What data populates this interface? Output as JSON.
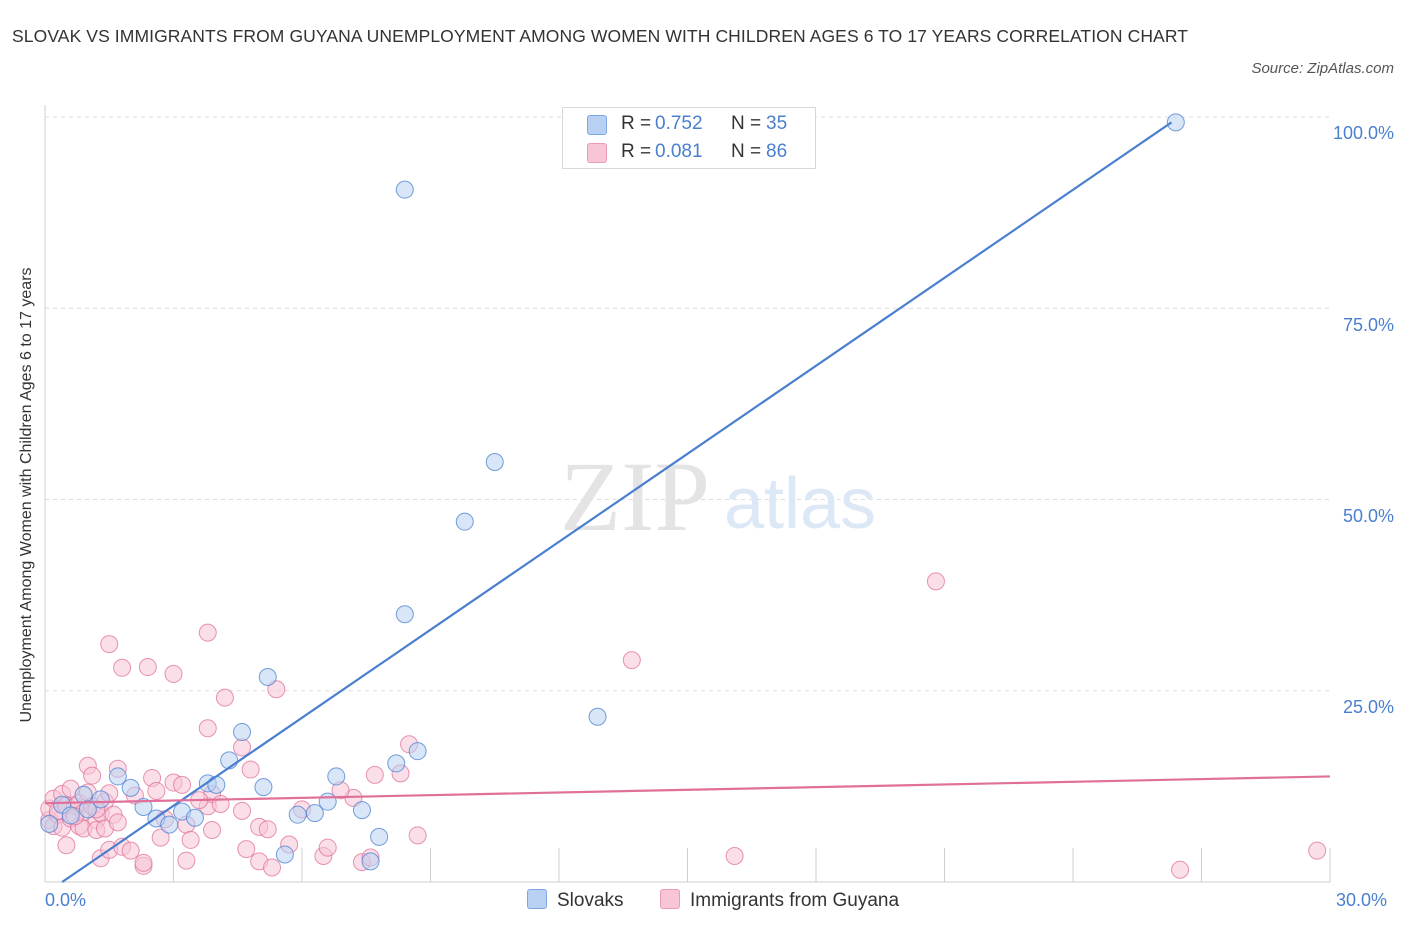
{
  "title": "SLOVAK VS IMMIGRANTS FROM GUYANA UNEMPLOYMENT AMONG WOMEN WITH CHILDREN AGES 6 TO 17 YEARS CORRELATION CHART",
  "source": "Source: ZipAtlas.com",
  "watermark": {
    "zip": "ZIP",
    "atlas": "atlas"
  },
  "legend": {
    "rows": [
      {
        "r_label": "R =",
        "r_value": "0.752",
        "n_label": "N =",
        "n_value": "35"
      },
      {
        "r_label": "R =",
        "r_value": "0.081",
        "n_label": "N =",
        "n_value": "86"
      }
    ]
  },
  "chart_data": {
    "type": "scatter",
    "xlabel": "",
    "ylabel": "Unemployment Among Women with Children Ages 6 to 17 years",
    "xlim": [
      0,
      30
    ],
    "ylim": [
      0,
      100
    ],
    "x_tick_labels": [
      "0.0%",
      "30.0%"
    ],
    "y_ticks": [
      25,
      50,
      75,
      100
    ],
    "y_tick_labels": [
      "25.0%",
      "50.0%",
      "75.0%",
      "100.0%"
    ],
    "grid": true,
    "legend_position": "bottom",
    "series": [
      {
        "name": "Slovaks",
        "color": "#4a7fd0",
        "fill": "#b8d1f3",
        "r": 0.752,
        "n": 35,
        "trend": [
          [
            0.4,
            0
          ],
          [
            26.3,
            99.3
          ]
        ],
        "points": [
          [
            0.1,
            7.6
          ],
          [
            0.4,
            10.1
          ],
          [
            0.6,
            8.7
          ],
          [
            0.9,
            11.4
          ],
          [
            1.0,
            9.5
          ],
          [
            1.3,
            10.8
          ],
          [
            1.7,
            13.8
          ],
          [
            2.0,
            12.3
          ],
          [
            2.3,
            9.8
          ],
          [
            2.6,
            8.3
          ],
          [
            2.9,
            7.5
          ],
          [
            3.2,
            9.2
          ],
          [
            3.5,
            8.4
          ],
          [
            3.8,
            12.9
          ],
          [
            4.0,
            12.7
          ],
          [
            4.3,
            15.9
          ],
          [
            4.6,
            19.6
          ],
          [
            5.1,
            12.4
          ],
          [
            5.2,
            26.8
          ],
          [
            5.6,
            3.6
          ],
          [
            5.9,
            8.8
          ],
          [
            6.3,
            9.0
          ],
          [
            6.6,
            10.5
          ],
          [
            6.8,
            13.8
          ],
          [
            7.4,
            9.4
          ],
          [
            7.6,
            2.7
          ],
          [
            7.8,
            5.9
          ],
          [
            8.2,
            15.5
          ],
          [
            8.4,
            35.0
          ],
          [
            8.7,
            17.1
          ],
          [
            8.4,
            90.5
          ],
          [
            9.8,
            47.1
          ],
          [
            10.5,
            54.9
          ],
          [
            12.9,
            21.6
          ],
          [
            26.4,
            99.3
          ]
        ]
      },
      {
        "name": "Immigrants from Guyana",
        "color": "#e0709a",
        "fill": "#f7c5d5",
        "r": 0.081,
        "n": 86,
        "trend": [
          [
            0,
            10.3
          ],
          [
            30,
            13.8
          ]
        ],
        "points": [
          [
            0.1,
            8.1
          ],
          [
            0.1,
            9.6
          ],
          [
            0.2,
            7.3
          ],
          [
            0.2,
            10.9
          ],
          [
            0.3,
            8.8
          ],
          [
            0.3,
            9.3
          ],
          [
            0.4,
            11.5
          ],
          [
            0.4,
            7.1
          ],
          [
            0.5,
            4.8
          ],
          [
            0.5,
            10.0
          ],
          [
            0.6,
            8.3
          ],
          [
            0.6,
            12.2
          ],
          [
            0.7,
            9.9
          ],
          [
            0.8,
            7.3
          ],
          [
            0.8,
            10.3
          ],
          [
            0.9,
            9.1
          ],
          [
            0.9,
            7.0
          ],
          [
            1.0,
            15.2
          ],
          [
            1.0,
            11.7
          ],
          [
            1.1,
            9.9
          ],
          [
            1.1,
            13.9
          ],
          [
            1.2,
            8.1
          ],
          [
            1.2,
            6.8
          ],
          [
            1.3,
            3.1
          ],
          [
            1.3,
            9.0
          ],
          [
            1.4,
            10.5
          ],
          [
            1.4,
            7.0
          ],
          [
            1.5,
            11.6
          ],
          [
            1.5,
            4.2
          ],
          [
            1.5,
            31.1
          ],
          [
            1.6,
            8.8
          ],
          [
            1.7,
            14.8
          ],
          [
            1.7,
            7.8
          ],
          [
            1.8,
            4.6
          ],
          [
            1.8,
            28.0
          ],
          [
            2.0,
            4.1
          ],
          [
            2.1,
            11.3
          ],
          [
            2.3,
            2.1
          ],
          [
            2.3,
            2.5
          ],
          [
            2.4,
            28.1
          ],
          [
            2.5,
            13.6
          ],
          [
            2.7,
            5.8
          ],
          [
            2.8,
            8.2
          ],
          [
            3.0,
            27.2
          ],
          [
            3.0,
            13.0
          ],
          [
            3.2,
            12.7
          ],
          [
            3.3,
            7.5
          ],
          [
            3.3,
            2.8
          ],
          [
            3.4,
            5.5
          ],
          [
            3.8,
            9.9
          ],
          [
            3.8,
            32.6
          ],
          [
            3.8,
            20.1
          ],
          [
            3.9,
            11.5
          ],
          [
            3.9,
            6.8
          ],
          [
            4.2,
            24.1
          ],
          [
            4.6,
            17.6
          ],
          [
            4.6,
            9.3
          ],
          [
            4.7,
            4.3
          ],
          [
            4.8,
            14.7
          ],
          [
            5.0,
            7.2
          ],
          [
            5.0,
            2.7
          ],
          [
            5.2,
            6.9
          ],
          [
            5.3,
            1.9
          ],
          [
            5.4,
            25.2
          ],
          [
            5.7,
            4.9
          ],
          [
            6.0,
            9.5
          ],
          [
            6.5,
            3.4
          ],
          [
            6.6,
            4.5
          ],
          [
            7.2,
            11.0
          ],
          [
            7.4,
            2.6
          ],
          [
            7.6,
            3.2
          ],
          [
            7.7,
            14.0
          ],
          [
            8.3,
            14.2
          ],
          [
            8.5,
            18.0
          ],
          [
            8.7,
            6.1
          ],
          [
            13.7,
            29.0
          ],
          [
            16.1,
            3.4
          ],
          [
            20.8,
            39.3
          ],
          [
            26.5,
            1.6
          ],
          [
            29.7,
            4.1
          ],
          [
            1.2,
            9.5
          ],
          [
            0.7,
            8.6
          ],
          [
            2.6,
            11.9
          ],
          [
            3.6,
            10.7
          ],
          [
            4.1,
            10.2
          ],
          [
            6.9,
            12.0
          ]
        ]
      }
    ]
  }
}
